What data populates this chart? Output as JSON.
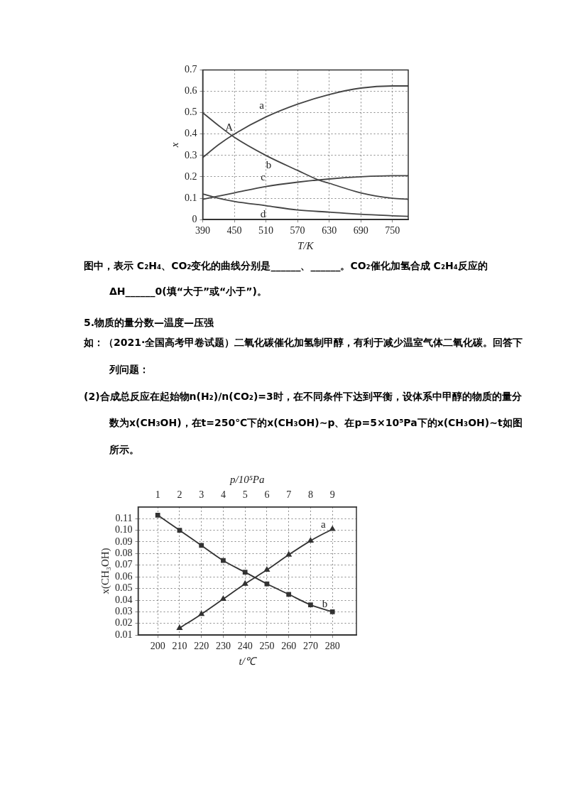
{
  "chart_data": [
    {
      "type": "line",
      "xlabel": "T/K",
      "ylabel": "x",
      "xlim": [
        390,
        780
      ],
      "ylim": [
        0,
        0.7
      ],
      "xticks": [
        390,
        450,
        510,
        570,
        630,
        690,
        750
      ],
      "yticks": [
        0,
        0.1,
        0.2,
        0.3,
        0.4,
        0.5,
        0.6,
        0.7
      ],
      "grid": true,
      "legend": false,
      "marker": "none",
      "line_style": "solid",
      "series": [
        {
          "name": "a",
          "color": "#444444",
          "x": [
            390,
            420,
            450,
            510,
            570,
            630,
            690,
            750,
            780
          ],
          "values": [
            0.29,
            0.35,
            0.4,
            0.48,
            0.54,
            0.585,
            0.615,
            0.625,
            0.625
          ]
        },
        {
          "name": "b",
          "color": "#444444",
          "x": [
            390,
            420,
            450,
            510,
            570,
            610,
            630,
            690,
            750,
            780
          ],
          "values": [
            0.5,
            0.44,
            0.385,
            0.3,
            0.23,
            0.185,
            0.17,
            0.125,
            0.1,
            0.095
          ]
        },
        {
          "name": "c",
          "color": "#444444",
          "x": [
            390,
            420,
            450,
            510,
            570,
            630,
            690,
            750,
            780
          ],
          "values": [
            0.095,
            0.11,
            0.125,
            0.155,
            0.175,
            0.19,
            0.2,
            0.205,
            0.205
          ]
        },
        {
          "name": "d",
          "color": "#444444",
          "x": [
            390,
            420,
            450,
            510,
            570,
            630,
            690,
            750,
            780
          ],
          "values": [
            0.12,
            0.1,
            0.085,
            0.065,
            0.045,
            0.035,
            0.025,
            0.018,
            0.015
          ]
        }
      ],
      "annotations": [
        {
          "text": "A",
          "x": 440,
          "y": 0.41
        },
        "图中，表示 C₂H₄、CO₂变化的曲线分别是______、______。CO₂催化加氢合成 C₂H₄反应的ΔH______0(填“大于”或“小于”)。"
      ]
    },
    {
      "type": "line",
      "title": "5.物质的量分数—温度—压强",
      "xlabel": "t/℃",
      "x2label": "p/10⁵Pa",
      "ylabel": "x(CH₃OH)",
      "xlim": [
        191,
        291
      ],
      "x2lim": [
        0.1,
        10.1
      ],
      "ylim": [
        0.01,
        0.12
      ],
      "xticks": [
        200,
        210,
        220,
        230,
        240,
        250,
        260,
        270,
        280
      ],
      "x2ticks": [
        1,
        2,
        3,
        4,
        5,
        6,
        7,
        8,
        9
      ],
      "yticks": [
        0.01,
        0.02,
        0.03,
        0.04,
        0.05,
        0.06,
        0.07,
        0.08,
        0.09,
        {
          "value": 0.1,
          "label": "0.10"
        },
        0.11
      ],
      "grid": true,
      "legend": false,
      "line_style": "solid",
      "series": [
        {
          "name": "a",
          "color": "#333333",
          "axis": "x2",
          "marker": "triangle",
          "x": [
            2,
            3,
            4,
            5,
            6,
            7,
            8,
            9
          ],
          "values": [
            0.016,
            0.028,
            0.041,
            0.054,
            0.066,
            0.079,
            0.091,
            0.101
          ]
        },
        {
          "name": "b",
          "color": "#333333",
          "marker": "square",
          "x": [
            200,
            210,
            220,
            230,
            240,
            250,
            260,
            270,
            280
          ],
          "values": [
            0.113,
            0.1,
            0.087,
            0.074,
            0.064,
            0.054,
            0.045,
            0.036,
            0.03
          ]
        }
      ],
      "annotations": [
        "如：（2021·全国高考甲卷试题）二氧化碳催化加氢制甲醇，有利于减少温室气体二氧化碳。回答下列问题：",
        "(2)合成总反应在起始物n(H₂)/n(CO₂)=3时，在不同条件下达到平衡，设体系中甲醇的物质的量分数为x(CH₃OH)，在t=250℃下的x(CH₃OH)~p、在p=5×10⁵Pa下的x(CH₃OH)~t如图所示。"
      ]
    }
  ]
}
